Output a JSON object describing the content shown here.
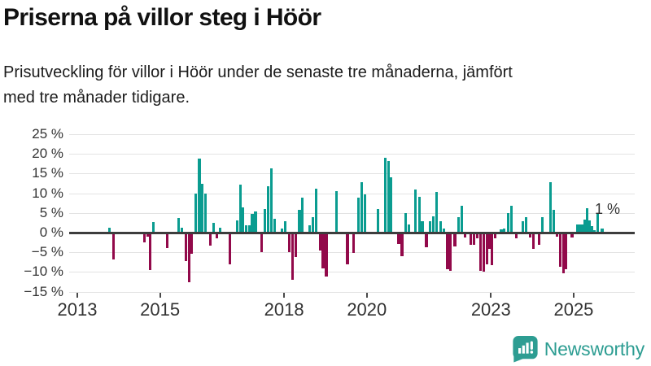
{
  "title": "Priserna på villor steg i Höör",
  "subtitle_lines": [
    "Prisutveckling för villor i Höör under de senaste tre månaderna, jämfört",
    "med tre månader tidigare."
  ],
  "footer": {
    "brand": "Newsworthy"
  },
  "colors": {
    "positive": "#0a9c90",
    "negative": "#92094a",
    "grid": "#e3e3e3",
    "zero_line": "#3d3d3d",
    "axis_text": "#333333",
    "brand": "#2d9d92"
  },
  "chart_data": {
    "type": "bar",
    "title": "",
    "xlabel": "",
    "ylabel": "",
    "unit": "%",
    "grid": true,
    "legend": false,
    "ylim": [
      -15,
      25
    ],
    "y_ticks": [
      {
        "v": 25,
        "label": "25 %"
      },
      {
        "v": 20,
        "label": "20 %"
      },
      {
        "v": 15,
        "label": "15 %"
      },
      {
        "v": 10,
        "label": "10 %"
      },
      {
        "v": 5,
        "label": "5 %"
      },
      {
        "v": 0,
        "label": "0 %"
      },
      {
        "v": -5,
        "label": "−5 %"
      },
      {
        "v": -10,
        "label": "−10 %"
      },
      {
        "v": -15,
        "label": "−15 %"
      }
    ],
    "x_ticks": [
      {
        "v": 2013,
        "label": "2013"
      },
      {
        "v": 2015,
        "label": "2015"
      },
      {
        "v": 2018,
        "label": "2018"
      },
      {
        "v": 2020,
        "label": "2020"
      },
      {
        "v": 2023,
        "label": "2023"
      },
      {
        "v": 2025,
        "label": "2025"
      }
    ],
    "annotation": {
      "text": "1 %",
      "t": 2025.69,
      "v": 1.0
    },
    "points": [
      [
        2013.77,
        1.2
      ],
      [
        2013.87,
        -6.9
      ],
      [
        2014.62,
        -2.4
      ],
      [
        2014.7,
        -1.0
      ],
      [
        2014.76,
        -9.5
      ],
      [
        2014.84,
        2.6
      ],
      [
        2015.18,
        -4.0
      ],
      [
        2015.45,
        3.7
      ],
      [
        2015.53,
        1.2
      ],
      [
        2015.62,
        -7.3
      ],
      [
        2015.7,
        -12.6
      ],
      [
        2015.77,
        -5.3
      ],
      [
        2015.87,
        9.9
      ],
      [
        2015.95,
        18.8
      ],
      [
        2016.02,
        12.4
      ],
      [
        2016.1,
        9.9
      ],
      [
        2016.22,
        -3.3
      ],
      [
        2016.3,
        2.5
      ],
      [
        2016.37,
        -1.4
      ],
      [
        2016.45,
        1.2
      ],
      [
        2016.69,
        -8.0
      ],
      [
        2016.86,
        3.0
      ],
      [
        2016.94,
        12.2
      ],
      [
        2017.01,
        6.4
      ],
      [
        2017.08,
        1.9
      ],
      [
        2017.16,
        1.8
      ],
      [
        2017.23,
        4.7
      ],
      [
        2017.31,
        5.4
      ],
      [
        2017.45,
        -4.9
      ],
      [
        2017.54,
        6.0
      ],
      [
        2017.61,
        11.7
      ],
      [
        2017.69,
        16.4
      ],
      [
        2017.77,
        3.6
      ],
      [
        2017.95,
        1.0
      ],
      [
        2018.02,
        2.8
      ],
      [
        2018.13,
        -5.0
      ],
      [
        2018.21,
        -11.9
      ],
      [
        2018.29,
        -6.1
      ],
      [
        2018.37,
        5.7
      ],
      [
        2018.44,
        8.8
      ],
      [
        2018.61,
        1.9
      ],
      [
        2018.69,
        3.9
      ],
      [
        2018.77,
        11.2
      ],
      [
        2018.87,
        -4.5
      ],
      [
        2018.94,
        -9.0
      ],
      [
        2019.02,
        -11.2
      ],
      [
        2019.27,
        10.5
      ],
      [
        2019.53,
        -8.1
      ],
      [
        2019.68,
        -5.2
      ],
      [
        2019.79,
        8.8
      ],
      [
        2019.87,
        12.8
      ],
      [
        2019.95,
        9.8
      ],
      [
        2020.27,
        5.9
      ],
      [
        2020.45,
        19.1
      ],
      [
        2020.52,
        18.1
      ],
      [
        2020.59,
        14.1
      ],
      [
        2020.77,
        -2.8
      ],
      [
        2020.85,
        -5.9
      ],
      [
        2020.94,
        5.0
      ],
      [
        2021.02,
        2.0
      ],
      [
        2021.18,
        11.0
      ],
      [
        2021.27,
        9.0
      ],
      [
        2021.34,
        2.9
      ],
      [
        2021.44,
        -3.8
      ],
      [
        2021.53,
        2.8
      ],
      [
        2021.61,
        4.1
      ],
      [
        2021.68,
        10.3
      ],
      [
        2021.79,
        2.9
      ],
      [
        2021.86,
        1.0
      ],
      [
        2021.95,
        -9.2
      ],
      [
        2022.02,
        -9.7
      ],
      [
        2022.13,
        -3.5
      ],
      [
        2022.22,
        3.9
      ],
      [
        2022.3,
        6.9
      ],
      [
        2022.38,
        -1.2
      ],
      [
        2022.51,
        -3.2
      ],
      [
        2022.59,
        -3.1
      ],
      [
        2022.67,
        -1.5
      ],
      [
        2022.75,
        -9.7
      ],
      [
        2022.82,
        -10.0
      ],
      [
        2022.9,
        -8.1
      ],
      [
        2022.97,
        -4.1
      ],
      [
        2023.03,
        -8.3
      ],
      [
        2023.1,
        -1.5
      ],
      [
        2023.25,
        0.8
      ],
      [
        2023.32,
        1.0
      ],
      [
        2023.41,
        5.0
      ],
      [
        2023.49,
        6.8
      ],
      [
        2023.62,
        -1.4
      ],
      [
        2023.77,
        2.9
      ],
      [
        2023.85,
        4.0
      ],
      [
        2023.95,
        -1.2
      ],
      [
        2024.03,
        -4.1
      ],
      [
        2024.17,
        -3.1
      ],
      [
        2024.25,
        3.9
      ],
      [
        2024.44,
        12.9
      ],
      [
        2024.52,
        5.7
      ],
      [
        2024.6,
        -1.0
      ],
      [
        2024.68,
        -8.7
      ],
      [
        2024.75,
        -10.3
      ],
      [
        2024.82,
        -9.2
      ],
      [
        2024.96,
        -1.2
      ],
      [
        2025.1,
        2.1
      ],
      [
        2025.15,
        2.1
      ],
      [
        2025.2,
        2.1
      ],
      [
        2025.26,
        3.4
      ],
      [
        2025.32,
        6.1
      ],
      [
        2025.38,
        3.1
      ],
      [
        2025.44,
        1.7
      ],
      [
        2025.51,
        0.7
      ],
      [
        2025.58,
        4.7
      ],
      [
        2025.69,
        1.0
      ]
    ]
  }
}
